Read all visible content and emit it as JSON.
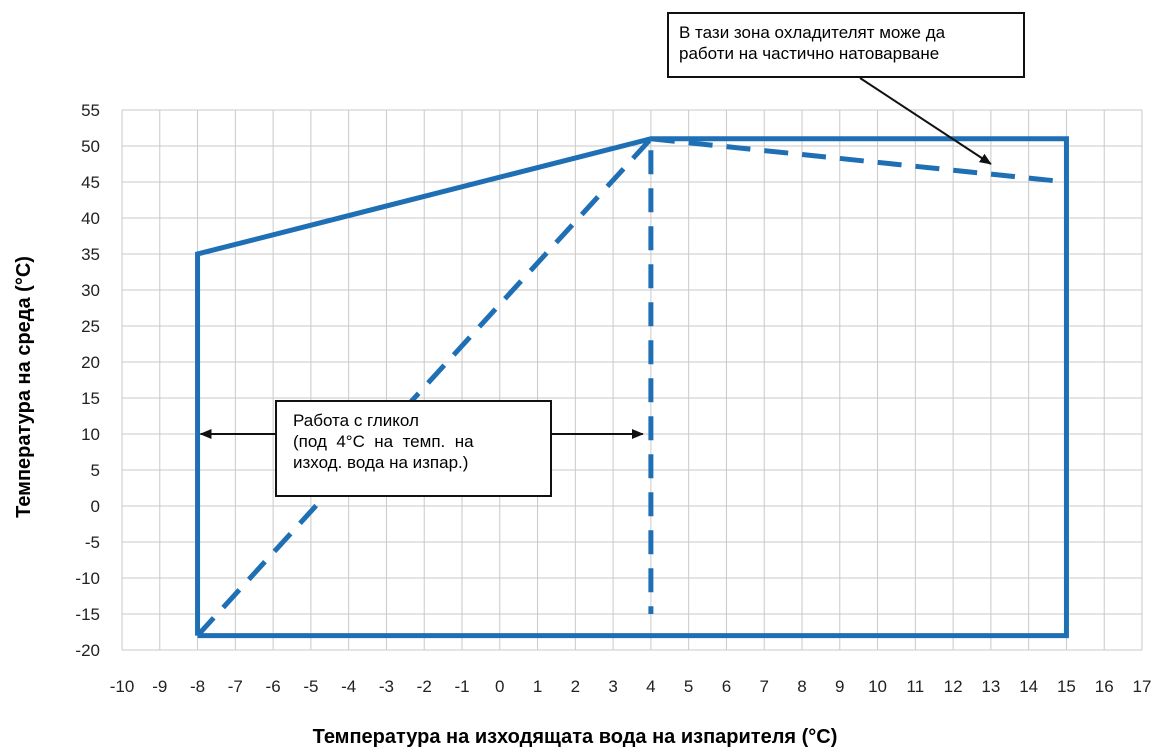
{
  "chart_data": {
    "type": "line",
    "title": "",
    "xlabel": "Температура на изходящата вода на изпарителя (°C)",
    "ylabel": "Температура на среда (°C)",
    "xlim": [
      -10,
      17
    ],
    "ylim": [
      -20,
      55
    ],
    "xticks": [
      -10,
      -9,
      -8,
      -7,
      -6,
      -5,
      -4,
      -3,
      -2,
      -1,
      0,
      1,
      2,
      3,
      4,
      5,
      6,
      7,
      8,
      9,
      10,
      11,
      12,
      13,
      14,
      15,
      16,
      17
    ],
    "yticks": [
      55,
      50,
      45,
      40,
      35,
      30,
      25,
      20,
      15,
      10,
      5,
      0,
      -5,
      -10,
      -15,
      -20
    ],
    "grid": true,
    "line_color": "#1f6fb5",
    "series": [
      {
        "style": "solid",
        "x": [
          -8,
          -8,
          4,
          15,
          15,
          -8
        ],
        "y": [
          -18,
          35,
          51,
          51,
          -18,
          -18
        ]
      },
      {
        "style": "dashed",
        "x": [
          -8,
          4,
          4
        ],
        "y": [
          -18,
          51,
          -15
        ]
      },
      {
        "style": "dashed",
        "x": [
          4,
          15
        ],
        "y": [
          51,
          45
        ]
      }
    ],
    "annotations": [
      {
        "lines": [
          "В тази зона охладителят може да",
          "работи на частично натоварване"
        ]
      },
      {
        "lines": [
          "Работа с гликол",
          "(под  4°C  на  темп.  на",
          "изход. вода на изпар.)"
        ]
      }
    ]
  }
}
